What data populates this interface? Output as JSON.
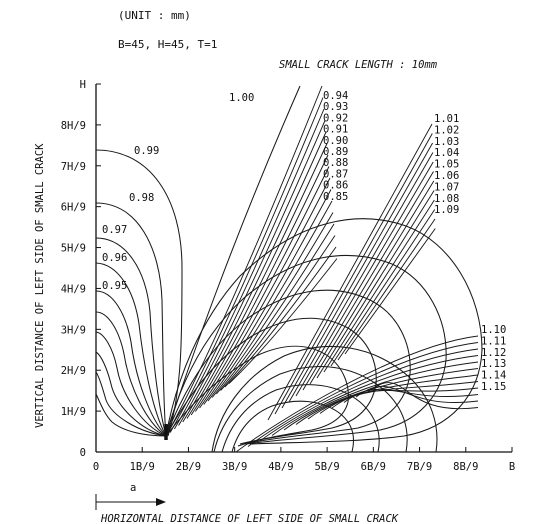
{
  "header": {
    "unit": "(UNIT : mm)",
    "params": "B=45,  H=45,  T=1",
    "crack_length": "SMALL CRACK LENGTH : 10mm"
  },
  "chart_data": {
    "type": "contour",
    "xlabel": "HORIZONTAL DISTANCE OF LEFT SIDE OF SMALL CRACK",
    "ylabel": "VERTICAL DISTANCE OF LEFT SIDE OF SMALL CRACK",
    "crack_marker_label": "a",
    "x_ticks": [
      "0",
      "1B/9",
      "2B/9",
      "3B/9",
      "4B/9",
      "5B/9",
      "6B/9",
      "7B/9",
      "8B/9",
      "B"
    ],
    "y_ticks": [
      "0",
      "1H/9",
      "2H/9",
      "3H/9",
      "4H/9",
      "5H/9",
      "6H/9",
      "7H/9",
      "8H/9",
      "H"
    ],
    "xlim": [
      0,
      9
    ],
    "ylim": [
      0,
      9
    ],
    "contour_levels_left": [
      "0.95",
      "0.96",
      "0.97",
      "0.98",
      "0.99"
    ],
    "contour_levels_center": [
      "1.00",
      "0.94",
      "0.93",
      "0.92",
      "0.91",
      "0.90",
      "0.89",
      "0.88",
      "0.87",
      "0.86",
      "0.85"
    ],
    "contour_levels_upper_right": [
      "1.01",
      "1.02",
      "1.03",
      "1.04",
      "1.05",
      "1.06",
      "1.07",
      "1.08",
      "1.09"
    ],
    "contour_levels_lower_right": [
      "1.10",
      "1.11",
      "1.12",
      "1.13",
      "1.14",
      "1.15"
    ]
  }
}
